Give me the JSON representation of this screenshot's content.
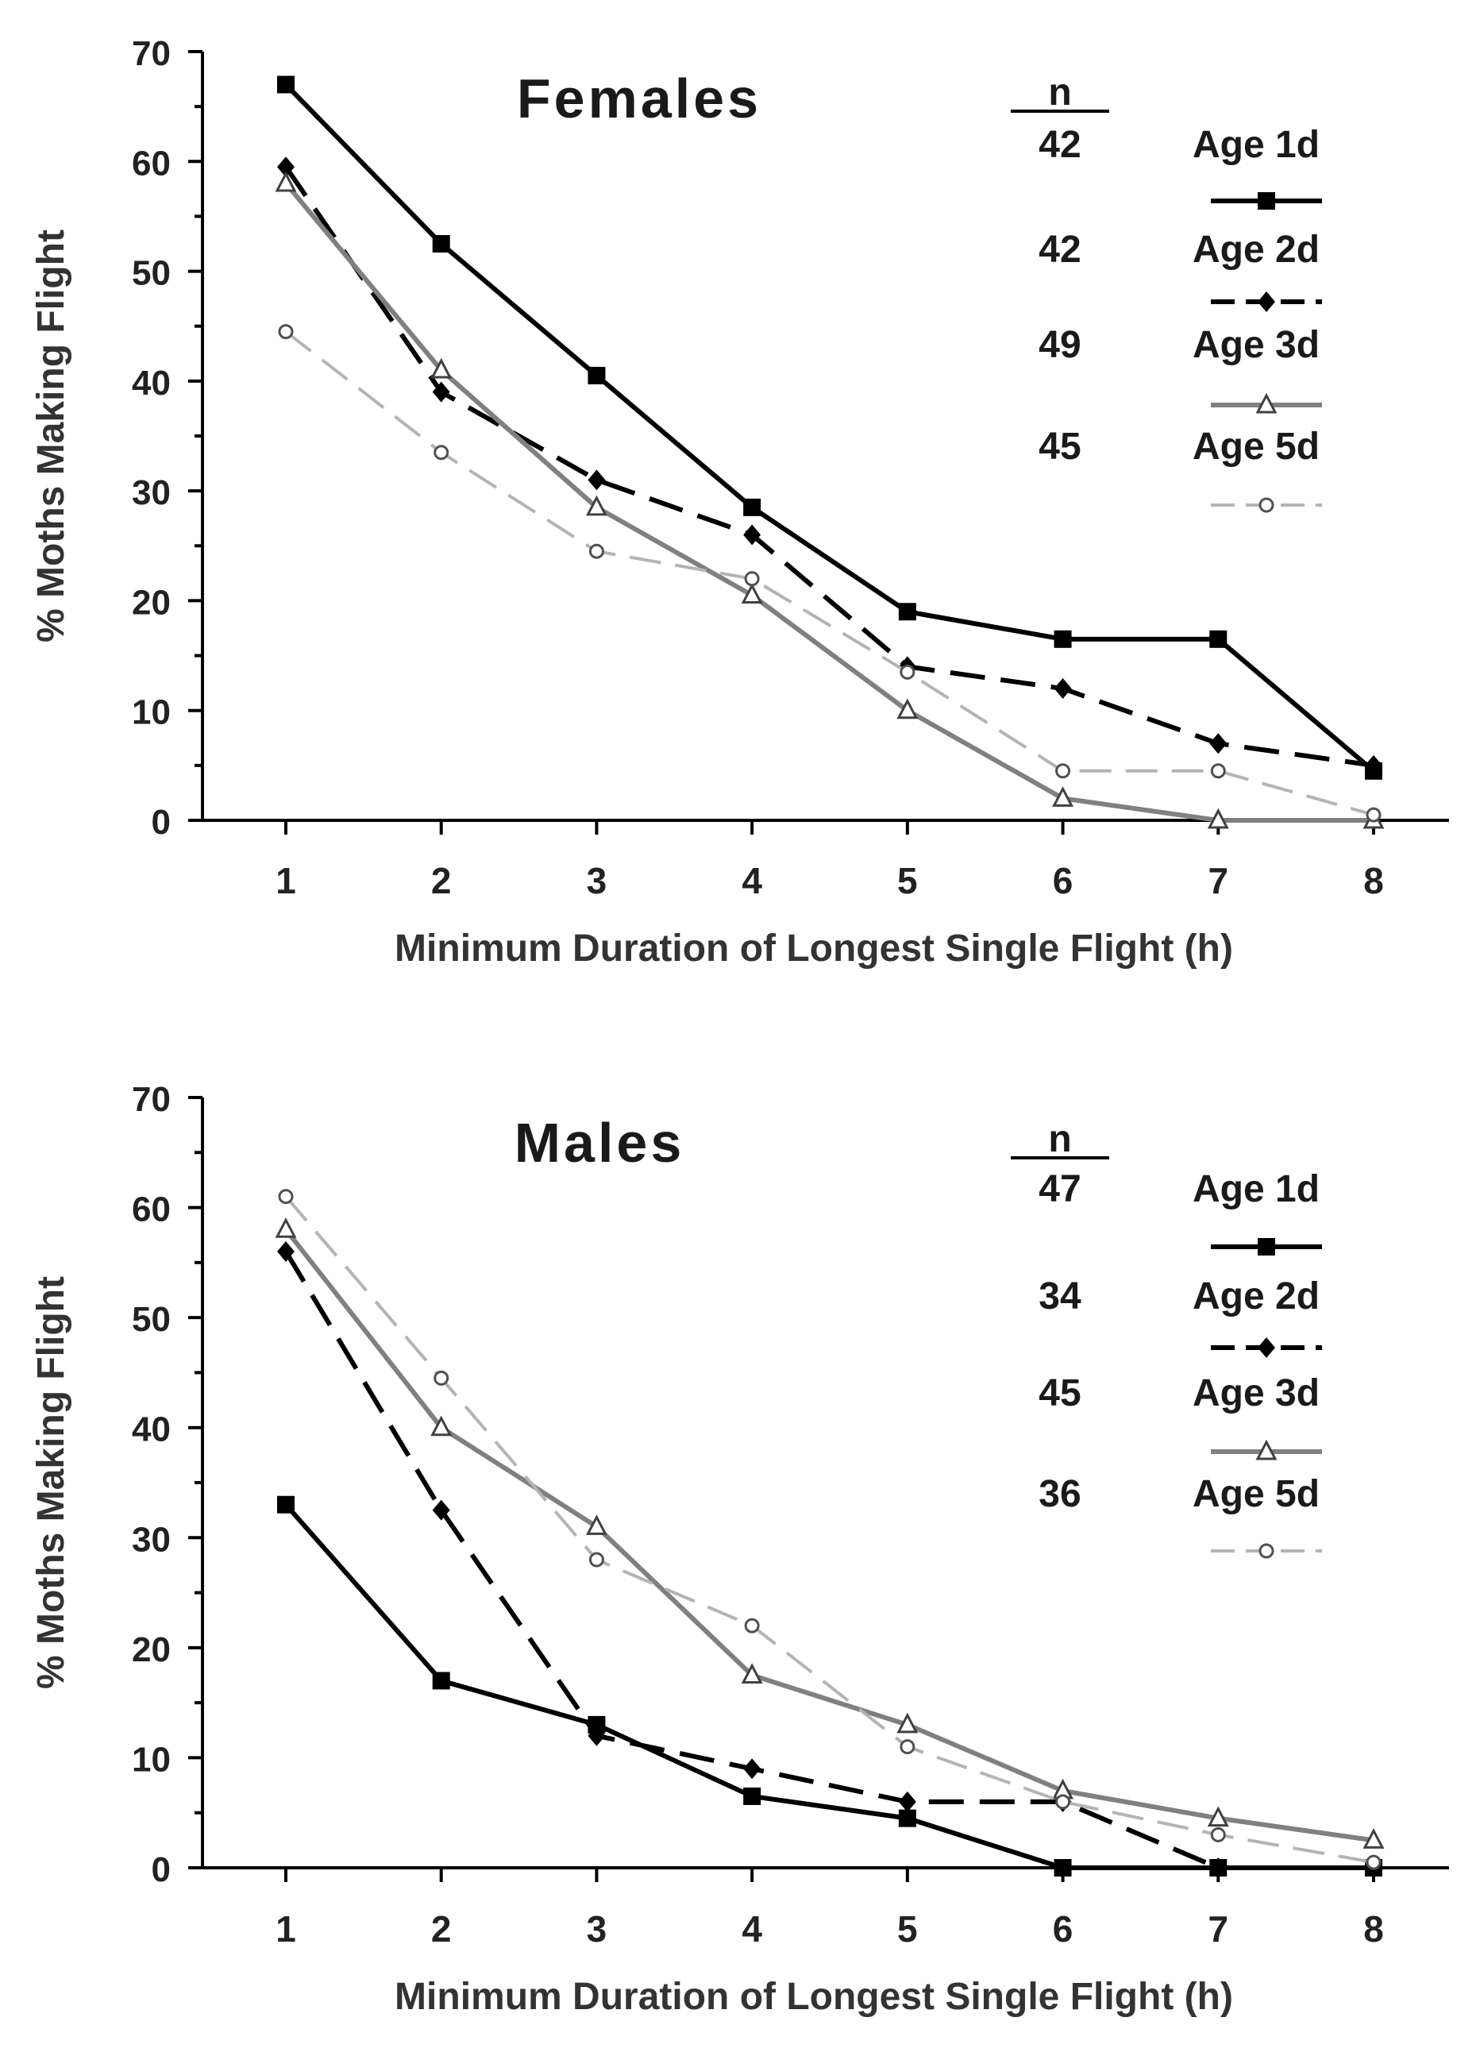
{
  "chart_data": [
    {
      "type": "line",
      "title": "Females",
      "xlabel": "Minimum Duration of Longest Single Flight (h)",
      "ylabel": "% Moths Making Flight",
      "x": [
        1,
        2,
        3,
        4,
        5,
        6,
        7,
        8
      ],
      "ylim": [
        0,
        70
      ],
      "yticks": [
        0,
        10,
        20,
        30,
        40,
        50,
        60,
        70
      ],
      "legend_header": "n",
      "series": [
        {
          "name": "Age 1d",
          "n": "42",
          "color": "#000000",
          "dash": "solid",
          "marker": "square",
          "values": [
            67,
            52.5,
            40.5,
            28.5,
            19,
            16.5,
            16.5,
            4.5
          ]
        },
        {
          "name": "Age 2d",
          "n": "42",
          "color": "#000000",
          "dash": "dashed",
          "marker": "diamond",
          "values": [
            59.5,
            39,
            31,
            26,
            14,
            12,
            7,
            5
          ]
        },
        {
          "name": "Age 3d",
          "n": "49",
          "color": "#808080",
          "dash": "solid",
          "marker": "triangle",
          "values": [
            58,
            41,
            28.5,
            20.5,
            10,
            2,
            0,
            0
          ]
        },
        {
          "name": "Age 5d",
          "n": "45",
          "color": "#b4b4b4",
          "dash": "dashed",
          "marker": "circle",
          "values": [
            44.5,
            33.5,
            24.5,
            22,
            13.5,
            4.5,
            4.5,
            0.5
          ]
        }
      ]
    },
    {
      "type": "line",
      "title": "Males",
      "xlabel": "Minimum Duration of Longest Single Flight (h)",
      "ylabel": "% Moths Making Flight",
      "x": [
        1,
        2,
        3,
        4,
        5,
        6,
        7,
        8
      ],
      "ylim": [
        0,
        70
      ],
      "yticks": [
        0,
        10,
        20,
        30,
        40,
        50,
        60,
        70
      ],
      "legend_header": "n",
      "series": [
        {
          "name": "Age 1d",
          "n": "47",
          "color": "#000000",
          "dash": "solid",
          "marker": "square",
          "values": [
            33,
            17,
            13,
            6.5,
            4.5,
            0,
            0,
            0
          ]
        },
        {
          "name": "Age 2d",
          "n": "34",
          "color": "#000000",
          "dash": "dashed",
          "marker": "diamond",
          "values": [
            56,
            32.5,
            12,
            9,
            6,
            6,
            0,
            0
          ]
        },
        {
          "name": "Age 3d",
          "n": "45",
          "color": "#808080",
          "dash": "solid",
          "marker": "triangle",
          "values": [
            58,
            40,
            31,
            17.5,
            13,
            7,
            4.5,
            2.5
          ]
        },
        {
          "name": "Age 5d",
          "n": "36",
          "color": "#b4b4b4",
          "dash": "dashed",
          "marker": "circle",
          "values": [
            61,
            44.5,
            28,
            22,
            11,
            6,
            3,
            0.5
          ]
        }
      ]
    }
  ]
}
